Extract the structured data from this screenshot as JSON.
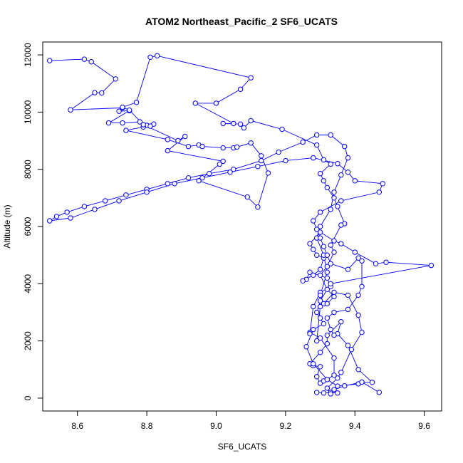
{
  "chart_data": {
    "type": "line",
    "title": "ATOM2 Northeast_Pacific_2 SF6_UCATS",
    "xlabel": "SF6_UCATS",
    "ylabel": "Altitude (m)",
    "xlim": [
      8.5,
      9.65
    ],
    "ylim": [
      -450,
      12450
    ],
    "x_ticks": [
      "8.6",
      "8.8",
      "9.0",
      "9.2",
      "9.4",
      "9.6"
    ],
    "x_tick_values": [
      8.6,
      8.8,
      9.0,
      9.2,
      9.4,
      9.6
    ],
    "y_ticks": [
      "0",
      "2000",
      "4000",
      "6000",
      "8000",
      "10000",
      "12000"
    ],
    "y_tick_values": [
      0,
      2000,
      4000,
      6000,
      8000,
      10000,
      12000
    ],
    "line_color": "#0000ff",
    "marker": "open-circle",
    "grid": false,
    "series": [
      {
        "values": [
          [
            9.29,
            200
          ],
          [
            9.31,
            180
          ],
          [
            9.33,
            200
          ],
          [
            9.35,
            180
          ],
          [
            9.34,
            300
          ],
          [
            9.37,
            430
          ],
          [
            9.42,
            560
          ],
          [
            9.45,
            550
          ],
          [
            9.41,
            1000
          ],
          [
            9.38,
            1840
          ],
          [
            9.35,
            2250
          ],
          [
            9.36,
            2670
          ],
          [
            9.32,
            2200
          ],
          [
            9.32,
            1900
          ],
          [
            9.3,
            1600
          ],
          [
            9.27,
            1200
          ],
          [
            9.28,
            1140
          ],
          [
            9.3,
            1100
          ],
          [
            9.29,
            750
          ],
          [
            9.3,
            520
          ],
          [
            9.31,
            600
          ],
          [
            9.34,
            800
          ],
          [
            9.34,
            1400
          ],
          [
            9.3,
            2100
          ],
          [
            9.27,
            2300
          ],
          [
            9.27,
            2250
          ],
          [
            9.28,
            3200
          ],
          [
            9.3,
            3700
          ],
          [
            9.33,
            3900
          ],
          [
            9.32,
            4200
          ],
          [
            9.27,
            4400
          ],
          [
            9.26,
            4150
          ],
          [
            9.25,
            4100
          ],
          [
            9.28,
            4300
          ],
          [
            9.3,
            4500
          ],
          [
            9.31,
            4900
          ],
          [
            9.29,
            5000
          ],
          [
            9.28,
            5200
          ],
          [
            9.27,
            5400
          ],
          [
            9.3,
            5800
          ],
          [
            9.34,
            5500
          ],
          [
            9.36,
            5400
          ],
          [
            9.4,
            5100
          ],
          [
            9.46,
            4700
          ],
          [
            9.49,
            4750
          ],
          [
            9.62,
            4640
          ],
          [
            9.33,
            4000
          ],
          [
            9.3,
            3400
          ],
          [
            9.29,
            3000
          ],
          [
            9.3,
            2800
          ],
          [
            9.31,
            2600
          ],
          [
            9.28,
            2400
          ],
          [
            9.26,
            1800
          ],
          [
            9.28,
            1200
          ],
          [
            9.32,
            650
          ],
          [
            9.35,
            420
          ],
          [
            9.41,
            500
          ],
          [
            9.42,
            560
          ],
          [
            9.47,
            200
          ]
        ]
      },
      {
        "values": [
          [
            9.33,
            150
          ],
          [
            9.32,
            350
          ],
          [
            9.35,
            700
          ],
          [
            9.36,
            900
          ],
          [
            9.39,
            1700
          ],
          [
            9.42,
            2300
          ],
          [
            9.41,
            2900
          ],
          [
            9.38,
            3600
          ],
          [
            9.34,
            3700
          ],
          [
            9.31,
            3300
          ],
          [
            9.3,
            3600
          ],
          [
            9.32,
            4400
          ],
          [
            9.31,
            5000
          ],
          [
            9.29,
            5600
          ],
          [
            9.3,
            6000
          ],
          [
            9.33,
            6600
          ],
          [
            9.34,
            7200
          ],
          [
            9.36,
            7800
          ],
          [
            9.38,
            8400
          ],
          [
            9.37,
            8800
          ],
          [
            9.33,
            9200
          ],
          [
            9.29,
            9200
          ],
          [
            9.25,
            8950
          ],
          [
            9.18,
            8600
          ],
          [
            9.13,
            8300
          ],
          [
            9.05,
            8000
          ],
          [
            8.98,
            7850
          ],
          [
            8.92,
            7700
          ],
          [
            8.86,
            7500
          ],
          [
            8.8,
            7300
          ],
          [
            8.74,
            7100
          ],
          [
            8.68,
            6900
          ],
          [
            8.62,
            6700
          ],
          [
            8.57,
            6500
          ],
          [
            8.54,
            6350
          ],
          [
            8.52,
            6200
          ],
          [
            8.58,
            6300
          ],
          [
            8.65,
            6600
          ],
          [
            8.72,
            6900
          ],
          [
            8.8,
            7200
          ],
          [
            8.88,
            7500
          ],
          [
            8.96,
            7700
          ],
          [
            9.04,
            7900
          ],
          [
            9.12,
            8100
          ],
          [
            9.2,
            8300
          ],
          [
            9.28,
            8400
          ],
          [
            9.35,
            8200
          ],
          [
            9.38,
            7900
          ],
          [
            9.4,
            7600
          ],
          [
            9.48,
            7500
          ],
          [
            9.47,
            7200
          ],
          [
            9.36,
            6900
          ],
          [
            9.3,
            6500
          ],
          [
            9.28,
            6200
          ],
          [
            9.29,
            5900
          ],
          [
            9.3,
            5600
          ],
          [
            9.31,
            5300
          ],
          [
            9.32,
            5000
          ],
          [
            9.33,
            4700
          ],
          [
            9.38,
            4500
          ],
          [
            9.41,
            4900
          ],
          [
            9.42,
            4800
          ],
          [
            9.42,
            3900
          ],
          [
            9.41,
            3600
          ],
          [
            9.38,
            3100
          ],
          [
            9.34,
            3000
          ],
          [
            9.32,
            2800
          ],
          [
            9.33,
            2400
          ],
          [
            9.34,
            2200
          ]
        ]
      },
      {
        "values": [
          [
            8.52,
            11800
          ],
          [
            8.62,
            11850
          ],
          [
            8.64,
            11760
          ],
          [
            8.71,
            11160
          ],
          [
            8.67,
            10670
          ],
          [
            8.65,
            10680
          ],
          [
            8.58,
            10080
          ],
          [
            8.73,
            10150
          ],
          [
            8.72,
            10030
          ],
          [
            8.75,
            10050
          ],
          [
            8.69,
            9620
          ],
          [
            8.73,
            9620
          ],
          [
            8.78,
            9660
          ],
          [
            8.8,
            9540
          ],
          [
            8.82,
            9580
          ],
          [
            8.81,
            9510
          ],
          [
            8.79,
            9480
          ],
          [
            8.74,
            9360
          ],
          [
            8.86,
            9040
          ],
          [
            8.92,
            8800
          ],
          [
            8.95,
            8850
          ],
          [
            8.96,
            8800
          ],
          [
            9.02,
            8750
          ],
          [
            9.05,
            8750
          ],
          [
            9.06,
            8780
          ],
          [
            9.1,
            8920
          ],
          [
            9.13,
            8470
          ],
          [
            9.15,
            7870
          ],
          [
            9.12,
            6680
          ],
          [
            9.09,
            7030
          ],
          [
            8.95,
            7600
          ],
          [
            9.01,
            8180
          ],
          [
            9.02,
            8280
          ],
          [
            8.86,
            8650
          ],
          [
            8.91,
            9150
          ],
          [
            8.89,
            9000
          ],
          [
            8.79,
            9560
          ],
          [
            8.75,
            10070
          ],
          [
            8.73,
            10170
          ],
          [
            8.77,
            10340
          ],
          [
            8.81,
            11920
          ],
          [
            8.83,
            11970
          ],
          [
            9.1,
            11200
          ],
          [
            9.07,
            10800
          ],
          [
            9.0,
            10310
          ],
          [
            8.94,
            10310
          ],
          [
            9.05,
            9600
          ],
          [
            9.02,
            9600
          ],
          [
            9.07,
            9580
          ],
          [
            9.08,
            9450
          ],
          [
            9.1,
            9700
          ],
          [
            9.19,
            9400
          ],
          [
            9.29,
            8850
          ],
          [
            9.31,
            8330
          ],
          [
            9.33,
            8180
          ],
          [
            9.3,
            7850
          ],
          [
            9.31,
            7600
          ],
          [
            9.32,
            7360
          ],
          [
            9.34,
            7000
          ],
          [
            9.35,
            6700
          ],
          [
            9.37,
            6100
          ],
          [
            9.36,
            6050
          ],
          [
            9.33,
            5350
          ],
          [
            9.34,
            5100
          ],
          [
            9.32,
            4600
          ],
          [
            9.3,
            4300
          ],
          [
            9.32,
            3800
          ],
          [
            9.34,
            3550
          ],
          [
            9.32,
            3300
          ],
          [
            9.3,
            3200
          ],
          [
            9.29,
            2000
          ]
        ]
      }
    ]
  }
}
